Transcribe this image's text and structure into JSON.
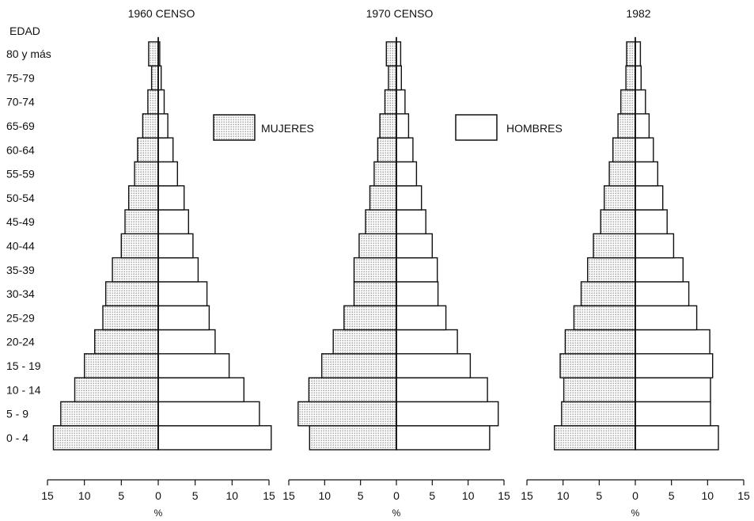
{
  "chart_data": {
    "type": "bar",
    "orientation": "horizontal",
    "subtype": "population-pyramid",
    "y_axis_title": "EDAD",
    "age_groups": [
      "0 - 4",
      "5 - 9",
      "10 - 14",
      "15 - 19",
      "20-24",
      "25-29",
      "30-34",
      "35-39",
      "40-44",
      "45-49",
      "50-54",
      "55-59",
      "60-64",
      "65-69",
      "70-74",
      "75-79",
      "80 y más"
    ],
    "xlabel": "%",
    "xlim": [
      -15,
      15
    ],
    "x_ticks": [
      -15,
      -10,
      -5,
      0,
      5,
      10,
      15
    ],
    "x_tick_labels": [
      "15",
      "10",
      "5",
      "0",
      "5",
      "10",
      "15"
    ],
    "legend": {
      "placement": "top",
      "items": [
        {
          "name": "MUJERES",
          "pattern": "dotted"
        },
        {
          "name": "HOMBRES",
          "pattern": "plain"
        }
      ]
    },
    "panels": [
      {
        "title": "1960 CENSO",
        "series": [
          {
            "name": "MUJERES",
            "values": [
              14.2,
              13.2,
              11.3,
              10.0,
              8.6,
              7.5,
              7.1,
              6.2,
              5.0,
              4.5,
              4.0,
              3.2,
              2.8,
              2.1,
              1.4,
              0.9,
              1.3
            ]
          },
          {
            "name": "HOMBRES",
            "values": [
              15.3,
              13.7,
              11.6,
              9.6,
              7.7,
              6.9,
              6.6,
              5.4,
              4.7,
              4.1,
              3.5,
              2.6,
              2.0,
              1.3,
              0.8,
              0.4,
              0.2
            ]
          }
        ]
      },
      {
        "title": "1970 CENSO",
        "series": [
          {
            "name": "MUJERES",
            "values": [
              12.1,
              13.7,
              12.2,
              10.4,
              8.8,
              7.3,
              5.9,
              5.9,
              5.2,
              4.3,
              3.7,
              3.1,
              2.6,
              2.3,
              1.6,
              1.1,
              1.4
            ]
          },
          {
            "name": "HOMBRES",
            "values": [
              13.0,
              14.2,
              12.7,
              10.3,
              8.5,
              6.9,
              5.8,
              5.7,
              5.0,
              4.1,
              3.5,
              2.8,
              2.3,
              1.7,
              1.2,
              0.7,
              0.6
            ]
          }
        ]
      },
      {
        "title": "1982",
        "series": [
          {
            "name": "MUJERES",
            "values": [
              11.2,
              10.2,
              9.9,
              10.4,
              9.7,
              8.5,
              7.5,
              6.6,
              5.8,
              4.8,
              4.3,
              3.6,
              3.1,
              2.4,
              2.0,
              1.3,
              1.2
            ]
          },
          {
            "name": "HOMBRES",
            "values": [
              11.5,
              10.4,
              10.4,
              10.7,
              10.3,
              8.5,
              7.4,
              6.6,
              5.3,
              4.4,
              3.8,
              3.1,
              2.5,
              1.9,
              1.4,
              0.8,
              0.7
            ]
          }
        ]
      }
    ]
  }
}
